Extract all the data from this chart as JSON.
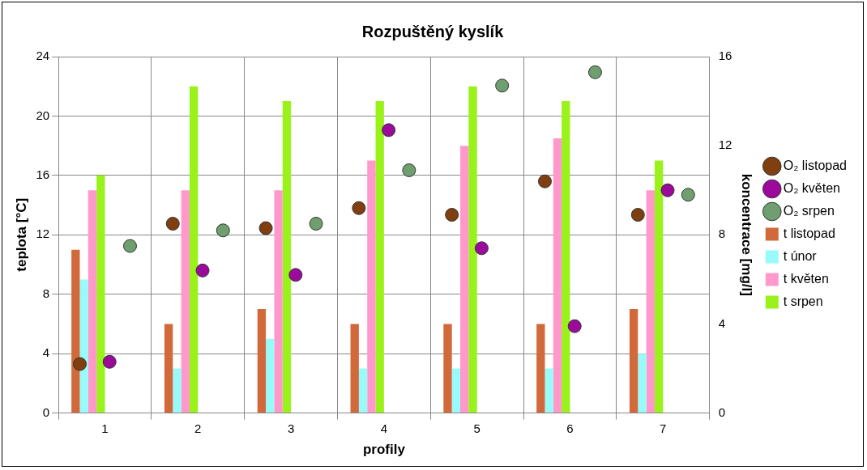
{
  "chart_data": {
    "type": "bar",
    "title": "Rozpuštěný kyslík",
    "xlabel": "profily",
    "ylabel": "teplota [°C]",
    "y2label": "koncentrace [mg/l]",
    "categories": [
      "1",
      "2",
      "3",
      "4",
      "5",
      "6",
      "7"
    ],
    "series": [
      {
        "name": "t listopad",
        "color": "#d2693a",
        "values": [
          11,
          6,
          7,
          6,
          6,
          6,
          7
        ]
      },
      {
        "name": "t únor",
        "color": "#99fafa",
        "values": [
          9,
          3,
          5,
          3,
          3,
          3,
          4
        ]
      },
      {
        "name": "t květen",
        "color": "#ff99cc",
        "values": [
          15,
          15,
          15,
          17,
          18,
          18.5,
          15
        ]
      },
      {
        "name": "t srpen",
        "color": "#99f219",
        "values": [
          16,
          22,
          21,
          21,
          22,
          21,
          17
        ]
      },
      {
        "name": "O₂ listopad",
        "type": "scatter",
        "axis": "y2",
        "color": "#7f3f10",
        "x": [
          "1",
          "2",
          "3",
          "4",
          "5",
          "6",
          "7"
        ],
        "values": [
          2.2,
          8.5,
          8.3,
          9.2,
          8.9,
          10.4,
          8.9
        ]
      },
      {
        "name": "O₂ květen",
        "type": "scatter",
        "axis": "y2",
        "color": "#9c0a9c",
        "x": [
          "1",
          "2",
          "3",
          "4",
          "5",
          "6",
          "7"
        ],
        "values": [
          2.3,
          6.4,
          6.2,
          12.7,
          7.4,
          3.9,
          10
        ]
      },
      {
        "name": "O₂ srpen",
        "type": "scatter",
        "axis": "y2",
        "color": "#6f9e6f",
        "x": [
          "1",
          "2",
          "3",
          "4",
          "5",
          "6",
          "7"
        ],
        "values": [
          7.5,
          8.2,
          8.5,
          10.9,
          14.7,
          15.3,
          9.8
        ]
      }
    ],
    "ylim": [
      0,
      24
    ],
    "yticks": [
      0,
      4,
      8,
      12,
      16,
      20,
      24
    ],
    "y2lim": [
      0,
      16
    ],
    "y2ticks": [
      0,
      4,
      8,
      12,
      16
    ],
    "grid": true,
    "legend": "right",
    "marker": "circle"
  }
}
